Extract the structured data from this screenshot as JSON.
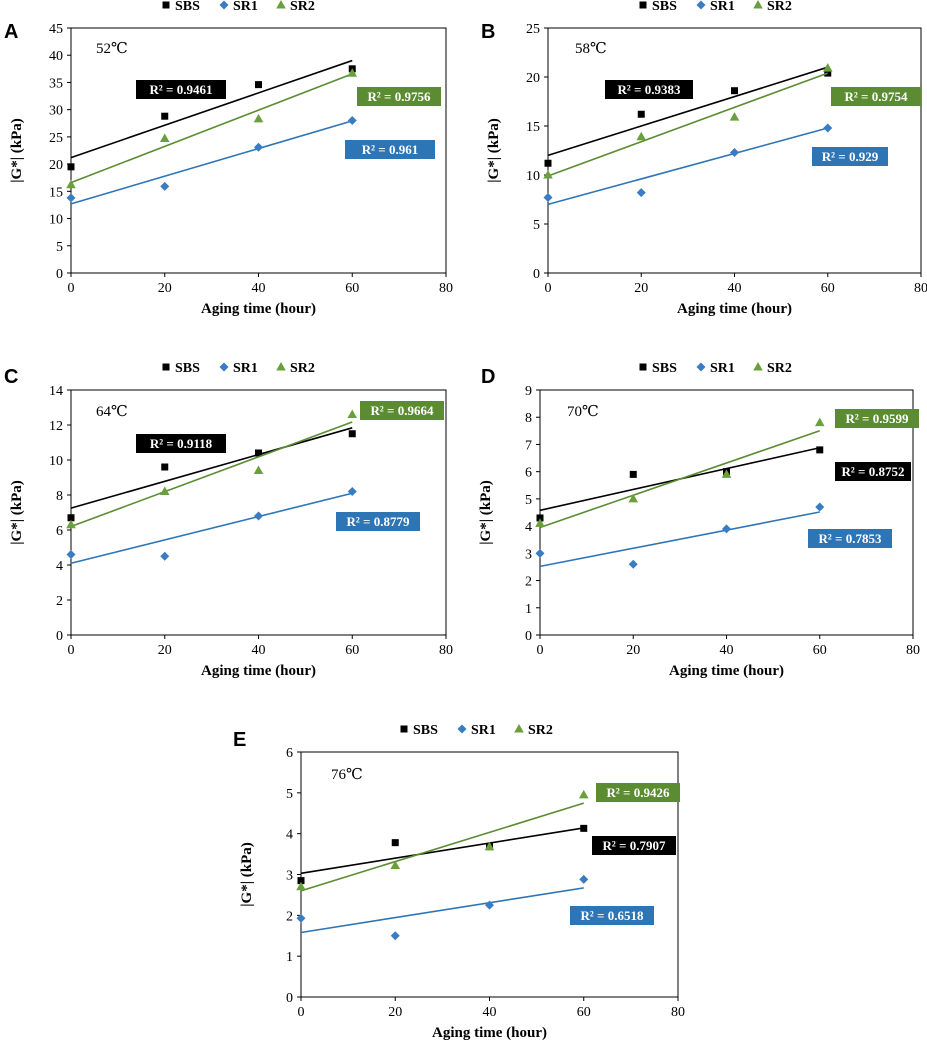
{
  "colors": {
    "SBS": "#000000",
    "SR1": "#2e75b6",
    "SR2": "#5b8c32",
    "marker_SR2": "#6aa03c",
    "marker_SR1": "#3a7cc2"
  },
  "chart_data": [
    {
      "type": "scatter",
      "panel": "A",
      "title": "52℃",
      "xlabel": "Aging time (hour)",
      "ylabel": "|G*| (kPa)",
      "xlim": [
        0,
        80
      ],
      "ylim": [
        0,
        45
      ],
      "xticks": [
        0,
        20,
        40,
        60,
        80
      ],
      "yticks": [
        0,
        5,
        10,
        15,
        20,
        25,
        30,
        35,
        40,
        45
      ],
      "legend": [
        "SBS",
        "SR1",
        "SR2"
      ],
      "series": [
        {
          "name": "SBS",
          "x": [
            0,
            20,
            40,
            60
          ],
          "y": [
            19.5,
            28.8,
            34.6,
            37.5
          ],
          "fit": [
            21.2,
            0.297
          ],
          "r2": "R² = 0.9461"
        },
        {
          "name": "SR1",
          "x": [
            0,
            20,
            40,
            60
          ],
          "y": [
            13.8,
            15.9,
            23.1,
            28.0
          ],
          "fit": [
            12.7,
            0.254
          ],
          "r2": "R² = 0.961"
        },
        {
          "name": "SR2",
          "x": [
            0,
            20,
            40,
            60
          ],
          "y": [
            16.2,
            24.7,
            28.3,
            36.7
          ],
          "fit": [
            16.6,
            0.333
          ],
          "r2": "R² = 0.9756"
        }
      ]
    },
    {
      "type": "scatter",
      "panel": "B",
      "title": "58℃",
      "xlabel": "Aging time (hour)",
      "ylabel": "|G*| (kPa)",
      "xlim": [
        0,
        80
      ],
      "ylim": [
        0,
        25
      ],
      "xticks": [
        0,
        20,
        40,
        60,
        80
      ],
      "yticks": [
        0,
        5,
        10,
        15,
        20,
        25
      ],
      "legend": [
        "SBS",
        "SR1",
        "SR2"
      ],
      "series": [
        {
          "name": "SBS",
          "x": [
            0,
            20,
            40,
            60
          ],
          "y": [
            11.2,
            16.2,
            18.6,
            20.4
          ],
          "fit": [
            12.0,
            0.15
          ],
          "r2": "R² = 0.9383"
        },
        {
          "name": "SR1",
          "x": [
            0,
            20,
            40,
            60
          ],
          "y": [
            7.7,
            8.2,
            12.3,
            14.8
          ],
          "fit": [
            7.0,
            0.13
          ],
          "r2": "R² = 0.929"
        },
        {
          "name": "SR2",
          "x": [
            0,
            20,
            40,
            60
          ],
          "y": [
            10.0,
            13.9,
            15.9,
            20.9
          ],
          "fit": [
            9.9,
            0.175
          ],
          "r2": "R² = 0.9754"
        }
      ]
    },
    {
      "type": "scatter",
      "panel": "C",
      "title": "64℃",
      "xlabel": "Aging time (hour)",
      "ylabel": "|G*| (kPa)",
      "xlim": [
        0,
        80
      ],
      "ylim": [
        0,
        14
      ],
      "xticks": [
        0,
        20,
        40,
        60,
        80
      ],
      "yticks": [
        0,
        2,
        4,
        6,
        8,
        10,
        12,
        14
      ],
      "legend": [
        "SBS",
        "SR1",
        "SR2"
      ],
      "series": [
        {
          "name": "SBS",
          "x": [
            0,
            20,
            40,
            60
          ],
          "y": [
            6.7,
            9.6,
            10.4,
            11.5
          ],
          "fit": [
            7.25,
            0.0765
          ],
          "r2": "R² = 0.9118"
        },
        {
          "name": "SR1",
          "x": [
            0,
            20,
            40,
            60
          ],
          "y": [
            4.6,
            4.5,
            6.8,
            8.2
          ],
          "fit": [
            4.1,
            0.0667
          ],
          "r2": "R² = 0.8779"
        },
        {
          "name": "SR2",
          "x": [
            0,
            20,
            40,
            60
          ],
          "y": [
            6.3,
            8.2,
            9.4,
            12.6
          ],
          "fit": [
            6.2,
            0.0995
          ],
          "r2": "R² = 0.9664"
        }
      ]
    },
    {
      "type": "scatter",
      "panel": "D",
      "title": "70℃",
      "xlabel": "Aging time (hour)",
      "ylabel": "|G*| (kPa)",
      "xlim": [
        0,
        80
      ],
      "ylim": [
        0,
        9
      ],
      "xticks": [
        0,
        20,
        40,
        60,
        80
      ],
      "yticks": [
        0,
        1,
        2,
        3,
        4,
        5,
        6,
        7,
        8,
        9
      ],
      "legend": [
        "SBS",
        "SR1",
        "SR2"
      ],
      "series": [
        {
          "name": "SBS",
          "x": [
            0,
            20,
            40,
            60
          ],
          "y": [
            4.3,
            5.9,
            6.0,
            6.8
          ],
          "fit": [
            4.58,
            0.0383
          ],
          "r2": "R² = 0.8752"
        },
        {
          "name": "SR1",
          "x": [
            0,
            20,
            40,
            60
          ],
          "y": [
            3.0,
            2.6,
            3.9,
            4.7
          ],
          "fit": [
            2.52,
            0.0333
          ],
          "r2": "R² = 0.7853"
        },
        {
          "name": "SR2",
          "x": [
            0,
            20,
            40,
            60
          ],
          "y": [
            4.1,
            5.0,
            5.9,
            7.8
          ],
          "fit": [
            3.95,
            0.0592
          ],
          "r2": "R² = 0.9599"
        }
      ]
    },
    {
      "type": "scatter",
      "panel": "E",
      "title": "76℃",
      "xlabel": "Aging time (hour)",
      "ylabel": "|G*| (kPa)",
      "xlim": [
        0,
        80
      ],
      "ylim": [
        0,
        6
      ],
      "xticks": [
        0,
        20,
        40,
        60,
        80
      ],
      "yticks": [
        0,
        1,
        2,
        3,
        4,
        5,
        6
      ],
      "legend": [
        "SBS",
        "SR1",
        "SR2"
      ],
      "series": [
        {
          "name": "SBS",
          "x": [
            0,
            20,
            40,
            60
          ],
          "y": [
            2.85,
            3.78,
            3.68,
            4.13
          ],
          "fit": [
            3.03,
            0.0185
          ],
          "r2": "R² = 0.7907"
        },
        {
          "name": "SR1",
          "x": [
            0,
            20,
            40,
            60
          ],
          "y": [
            1.93,
            1.5,
            2.25,
            2.88
          ],
          "fit": [
            1.58,
            0.0182
          ],
          "r2": "R² = 0.6518"
        },
        {
          "name": "SR2",
          "x": [
            0,
            20,
            40,
            60
          ],
          "y": [
            2.7,
            3.22,
            3.68,
            4.95
          ],
          "fit": [
            2.6,
            0.0358
          ],
          "r2": "R² = 0.9426"
        }
      ]
    }
  ]
}
